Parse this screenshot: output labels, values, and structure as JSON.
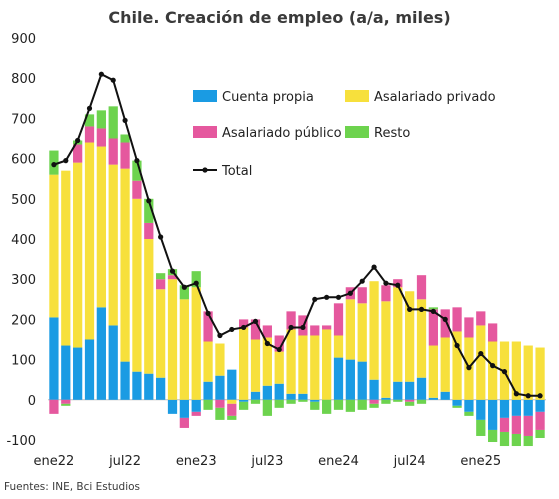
{
  "chart_data": {
    "type": "bar",
    "title": "Chile. Creación de empleo (a/a, miles)",
    "source": "Fuentes: INE, Bci Estudios",
    "ylim": [
      -100,
      900
    ],
    "yticks": [
      -100,
      0,
      100,
      200,
      300,
      400,
      500,
      600,
      700,
      800,
      900
    ],
    "grid": false,
    "legend_position": "top-right",
    "x_tick_labels": [
      {
        "index": 0,
        "label": "ene22"
      },
      {
        "index": 6,
        "label": "jul22"
      },
      {
        "index": 12,
        "label": "ene23"
      },
      {
        "index": 18,
        "label": "jul23"
      },
      {
        "index": 24,
        "label": "ene24"
      },
      {
        "index": 30,
        "label": "jul24"
      },
      {
        "index": 36,
        "label": "ene25"
      }
    ],
    "categories": [
      "2022-01",
      "2022-02",
      "2022-03",
      "2022-04",
      "2022-05",
      "2022-06",
      "2022-07",
      "2022-08",
      "2022-09",
      "2022-10",
      "2022-11",
      "2022-12",
      "2023-01",
      "2023-02",
      "2023-03",
      "2023-04",
      "2023-05",
      "2023-06",
      "2023-07",
      "2023-08",
      "2023-09",
      "2023-10",
      "2023-11",
      "2023-12",
      "2024-01",
      "2024-02",
      "2024-03",
      "2024-04",
      "2024-05",
      "2024-06",
      "2024-07",
      "2024-08",
      "2024-09",
      "2024-10",
      "2024-11",
      "2024-12",
      "2025-01",
      "2025-02",
      "2025-03",
      "2025-04",
      "2025-05",
      "2025-06"
    ],
    "series": [
      {
        "name": "Cuenta propia",
        "color": "#1a9be3",
        "values": [
          205,
          135,
          130,
          150,
          230,
          185,
          95,
          70,
          65,
          55,
          -35,
          -45,
          -30,
          45,
          60,
          75,
          -5,
          20,
          35,
          40,
          15,
          15,
          -5,
          0,
          105,
          100,
          95,
          50,
          5,
          45,
          45,
          55,
          5,
          20,
          -15,
          -30,
          -50,
          -75,
          -45,
          -40,
          -40,
          -30
        ]
      },
      {
        "name": "Asalariado privado",
        "color": "#f7e03c",
        "values": [
          355,
          435,
          460,
          490,
          400,
          400,
          480,
          430,
          335,
          220,
          300,
          250,
          280,
          100,
          80,
          -10,
          180,
          130,
          120,
          80,
          160,
          145,
          160,
          175,
          55,
          150,
          145,
          245,
          240,
          235,
          225,
          195,
          130,
          135,
          170,
          155,
          185,
          145,
          145,
          145,
          135,
          130
        ]
      },
      {
        "name": "Asalariado público",
        "color": "#e5589e",
        "values": [
          -35,
          -10,
          45,
          40,
          45,
          65,
          65,
          45,
          40,
          25,
          10,
          -25,
          -10,
          75,
          -20,
          -30,
          20,
          50,
          30,
          40,
          45,
          50,
          25,
          10,
          80,
          30,
          40,
          -10,
          40,
          20,
          -5,
          60,
          90,
          70,
          60,
          50,
          35,
          45,
          -35,
          -45,
          -50,
          -45
        ]
      },
      {
        "name": "Resto",
        "color": "#6dd34e",
        "values": [
          60,
          -5,
          10,
          30,
          45,
          80,
          20,
          50,
          60,
          15,
          15,
          35,
          40,
          -25,
          -30,
          -10,
          -20,
          -10,
          -40,
          -20,
          -10,
          -5,
          -20,
          -35,
          -25,
          -30,
          -25,
          -10,
          -10,
          -5,
          -10,
          -10,
          5,
          0,
          -5,
          -10,
          -40,
          -30,
          -35,
          -30,
          -25,
          -20
        ]
      }
    ],
    "total": {
      "name": "Total",
      "color": "#111111",
      "values": [
        585,
        595,
        645,
        725,
        810,
        795,
        695,
        595,
        495,
        405,
        320,
        280,
        290,
        215,
        160,
        175,
        180,
        195,
        140,
        125,
        180,
        180,
        250,
        255,
        255,
        265,
        295,
        330,
        290,
        285,
        225,
        225,
        220,
        200,
        135,
        80,
        115,
        85,
        70,
        15,
        10,
        10
      ]
    }
  }
}
